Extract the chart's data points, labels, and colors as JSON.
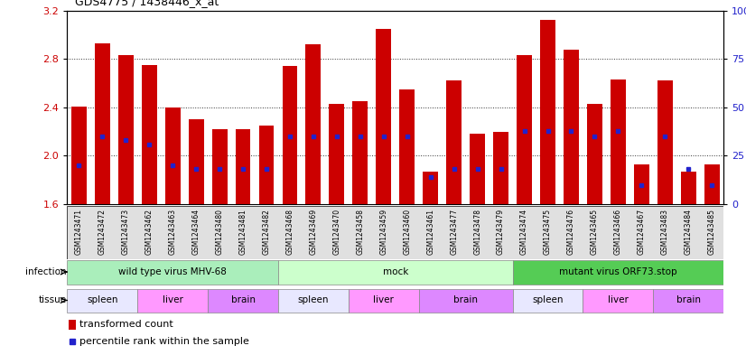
{
  "title": "GDS4775 / 1438446_x_at",
  "samples": [
    "GSM1243471",
    "GSM1243472",
    "GSM1243473",
    "GSM1243462",
    "GSM1243463",
    "GSM1243464",
    "GSM1243480",
    "GSM1243481",
    "GSM1243482",
    "GSM1243468",
    "GSM1243469",
    "GSM1243470",
    "GSM1243458",
    "GSM1243459",
    "GSM1243460",
    "GSM1243461",
    "GSM1243477",
    "GSM1243478",
    "GSM1243479",
    "GSM1243474",
    "GSM1243475",
    "GSM1243476",
    "GSM1243465",
    "GSM1243466",
    "GSM1243467",
    "GSM1243483",
    "GSM1243484",
    "GSM1243485"
  ],
  "transformed_count": [
    2.41,
    2.93,
    2.83,
    2.75,
    2.4,
    2.3,
    2.22,
    2.22,
    2.25,
    2.74,
    2.92,
    2.43,
    2.45,
    3.05,
    2.55,
    1.87,
    2.62,
    2.18,
    2.2,
    2.83,
    3.12,
    2.88,
    2.43,
    2.63,
    1.93,
    2.62,
    1.87,
    1.93
  ],
  "percentile_values": [
    20,
    35,
    33,
    31,
    20,
    18,
    18,
    18,
    18,
    35,
    35,
    35,
    35,
    35,
    35,
    14,
    18,
    18,
    18,
    38,
    38,
    38,
    35,
    38,
    10,
    35,
    18,
    10
  ],
  "ylim": [
    1.6,
    3.2
  ],
  "yticks_left": [
    1.6,
    2.0,
    2.4,
    2.8,
    3.2
  ],
  "yticks_right_pct": [
    0,
    25,
    50,
    75,
    100
  ],
  "bar_color": "#cc0000",
  "dot_color": "#2222cc",
  "chart_bg": "#ffffff",
  "infection_groups": [
    {
      "label": "wild type virus MHV-68",
      "start": 0,
      "end": 9,
      "color": "#aaeebb"
    },
    {
      "label": "mock",
      "start": 9,
      "end": 19,
      "color": "#ccffcc"
    },
    {
      "label": "mutant virus ORF73.stop",
      "start": 19,
      "end": 28,
      "color": "#55cc55"
    }
  ],
  "tissue_groups": [
    {
      "label": "spleen",
      "start": 0,
      "end": 3,
      "color": "#e8e8ff"
    },
    {
      "label": "liver",
      "start": 3,
      "end": 6,
      "color": "#ff99ff"
    },
    {
      "label": "brain",
      "start": 6,
      "end": 9,
      "color": "#dd88ff"
    },
    {
      "label": "spleen",
      "start": 9,
      "end": 12,
      "color": "#e8e8ff"
    },
    {
      "label": "liver",
      "start": 12,
      "end": 15,
      "color": "#ff99ff"
    },
    {
      "label": "brain",
      "start": 15,
      "end": 19,
      "color": "#dd88ff"
    },
    {
      "label": "spleen",
      "start": 19,
      "end": 22,
      "color": "#e8e8ff"
    },
    {
      "label": "liver",
      "start": 22,
      "end": 25,
      "color": "#ff99ff"
    },
    {
      "label": "brain",
      "start": 25,
      "end": 28,
      "color": "#dd88ff"
    }
  ],
  "outer_bg": "#ffffff"
}
